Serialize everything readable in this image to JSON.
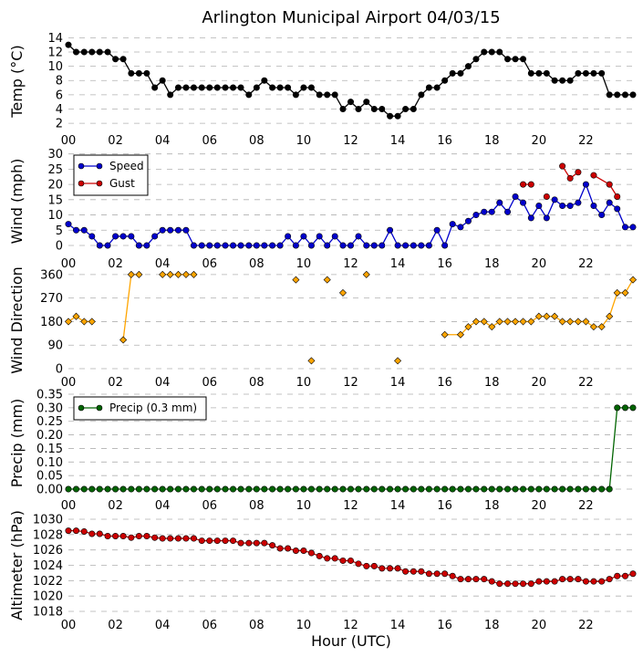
{
  "chart_data": {
    "type": "line",
    "title": "Arlington Municipal Airport 04/03/15",
    "xlabel": "Hour (UTC)",
    "x_range": [
      0,
      24
    ],
    "x_ticks": [
      "00",
      "02",
      "04",
      "06",
      "08",
      "10",
      "12",
      "14",
      "16",
      "18",
      "20",
      "22"
    ],
    "panels": [
      {
        "id": "temp",
        "ylabel": "Temp ($^\\circ$C)",
        "ylabel_display": "Temp (°C)",
        "ylim": [
          1.5,
          14.3
        ],
        "yticks": [
          2,
          4,
          6,
          8,
          10,
          12,
          14
        ],
        "ytick_labels": [
          "2",
          "4",
          "6",
          "8",
          "10",
          "12",
          "14"
        ],
        "series": [
          {
            "name": "Temp",
            "color": "#000000",
            "connect": true,
            "x": [
              0,
              0.33,
              0.67,
              1,
              1.33,
              1.67,
              2,
              2.33,
              2.67,
              3,
              3.33,
              3.67,
              4,
              4.33,
              4.67,
              5,
              5.33,
              5.67,
              6,
              6.33,
              6.67,
              7,
              7.33,
              7.67,
              8,
              8.33,
              8.67,
              9,
              9.33,
              9.67,
              10,
              10.33,
              10.67,
              11,
              11.33,
              11.67,
              12,
              12.33,
              12.67,
              13,
              13.33,
              13.67,
              14,
              14.33,
              14.67,
              15,
              15.33,
              15.67,
              16,
              16.33,
              16.67,
              17,
              17.33,
              17.67,
              18,
              18.33,
              18.67,
              19,
              19.33,
              19.67,
              20,
              20.33,
              20.67,
              21,
              21.33,
              21.67,
              22,
              22.33,
              22.67,
              23,
              23.33,
              23.67,
              24
            ],
            "values": [
              13,
              12,
              12,
              12,
              12,
              12,
              11,
              11,
              9,
              9,
              9,
              7,
              8,
              6,
              7,
              7,
              7,
              7,
              7,
              7,
              7,
              7,
              7,
              6,
              7,
              8,
              7,
              7,
              7,
              6,
              7,
              7,
              6,
              6,
              6,
              4,
              5,
              4,
              5,
              4,
              4,
              3,
              3,
              4,
              4,
              6,
              7,
              7,
              8,
              9,
              9,
              10,
              11,
              12,
              12,
              12,
              11,
              11,
              11,
              9,
              9,
              9,
              8,
              8,
              8,
              9,
              9,
              9,
              9,
              6,
              6,
              6,
              6
            ]
          }
        ]
      },
      {
        "id": "wind",
        "ylabel": "Wind (mph)",
        "ylim": [
          -1.5,
          30.5
        ],
        "yticks": [
          0,
          5,
          10,
          15,
          20,
          25,
          30
        ],
        "ytick_labels": [
          "0",
          "5",
          "10",
          "15",
          "20",
          "25",
          "30"
        ],
        "legend": [
          {
            "label": "Speed",
            "color": "#0000cc"
          },
          {
            "label": "Gust",
            "color": "#cc0000"
          }
        ],
        "series": [
          {
            "name": "Speed",
            "color": "#0000cc",
            "connect": true,
            "x": [
              0,
              0.33,
              0.67,
              1,
              1.33,
              1.67,
              2,
              2.33,
              2.67,
              3,
              3.33,
              3.67,
              4,
              4.33,
              4.67,
              5,
              5.33,
              5.67,
              6,
              6.33,
              6.67,
              7,
              7.33,
              7.67,
              8,
              8.33,
              8.67,
              9,
              9.33,
              9.67,
              10,
              10.33,
              10.67,
              11,
              11.33,
              11.67,
              12,
              12.33,
              12.67,
              13,
              13.33,
              13.67,
              14,
              14.33,
              14.67,
              15,
              15.33,
              15.67,
              16,
              16.33,
              16.67,
              17,
              17.33,
              17.67,
              18,
              18.33,
              18.67,
              19,
              19.33,
              19.67,
              20,
              20.33,
              20.67,
              21,
              21.33,
              21.67,
              22,
              22.33,
              22.67,
              23,
              23.33,
              23.67,
              24
            ],
            "values": [
              7,
              5,
              5,
              3,
              0,
              0,
              3,
              3,
              3,
              0,
              0,
              3,
              5,
              5,
              5,
              5,
              0,
              0,
              0,
              0,
              0,
              0,
              0,
              0,
              0,
              0,
              0,
              0,
              3,
              0,
              3,
              0,
              3,
              0,
              3,
              0,
              0,
              3,
              0,
              0,
              0,
              5,
              0,
              0,
              0,
              0,
              0,
              5,
              0,
              7,
              6,
              8,
              10,
              11,
              11,
              14,
              11,
              16,
              14,
              9,
              13,
              9,
              15,
              13,
              13,
              14,
              20,
              13,
              10,
              14,
              12,
              6,
              6
            ]
          },
          {
            "name": "Gust",
            "color": "#cc0000",
            "connect": true,
            "x": [
              19.33,
              19.67,
              20.33,
              21,
              21.33,
              21.67,
              22.33,
              23,
              23.33
            ],
            "values": [
              20,
              20,
              16,
              26,
              22,
              24,
              23,
              20,
              16
            ],
            "breaks_after": [
              1,
              2,
              5
            ]
          }
        ]
      },
      {
        "id": "direction",
        "ylabel": "Wind Direction",
        "ylim": [
          0,
          370
        ],
        "yticks": [
          0,
          90,
          180,
          270,
          360
        ],
        "ytick_labels": [
          "0",
          "90",
          "180",
          "270",
          "360"
        ],
        "series": [
          {
            "name": "Direction",
            "color": "#ffa500",
            "x": [
              0,
              0.33,
              0.67,
              1,
              2.33,
              2.67,
              3,
              4,
              4.33,
              4.67,
              5,
              5.33,
              9.67,
              10.33,
              11,
              11.67,
              12.67,
              14,
              16,
              16.67,
              17,
              17.33,
              17.67,
              18,
              18.33,
              18.67,
              19,
              19.33,
              19.67,
              20,
              20.33,
              20.67,
              21,
              21.33,
              21.67,
              22,
              22.33,
              22.67,
              23,
              23.33,
              23.67,
              24
            ],
            "values": [
              180,
              200,
              180,
              180,
              110,
              360,
              360,
              360,
              360,
              360,
              360,
              360,
              340,
              30,
              340,
              290,
              360,
              30,
              130,
              130,
              160,
              180,
              180,
              160,
              180,
              180,
              180,
              180,
              180,
              200,
              200,
              200,
              180,
              180,
              180,
              180,
              160,
              160,
              200,
              290,
              290,
              340
            ],
            "segments": [
              [
                0,
                3
              ],
              [
                4,
                6
              ],
              [
                7,
                11
              ],
              [
                18,
                41
              ]
            ]
          }
        ]
      },
      {
        "id": "precip",
        "ylabel": "Precip (mm)",
        "ylim": [
          -0.01,
          0.35
        ],
        "yticks": [
          0.0,
          0.05,
          0.1,
          0.15,
          0.2,
          0.25,
          0.3,
          0.35
        ],
        "ytick_labels": [
          "0.00",
          "0.05",
          "0.10",
          "0.15",
          "0.20",
          "0.25",
          "0.30",
          "0.35"
        ],
        "legend": [
          {
            "label": "Precip (0.3 mm)",
            "color": "#006400"
          }
        ],
        "series": [
          {
            "name": "Precip",
            "color": "#006400",
            "connect": true,
            "x": [
              0,
              0.33,
              0.67,
              1,
              1.33,
              1.67,
              2,
              2.33,
              2.67,
              3,
              3.33,
              3.67,
              4,
              4.33,
              4.67,
              5,
              5.33,
              5.67,
              6,
              6.33,
              6.67,
              7,
              7.33,
              7.67,
              8,
              8.33,
              8.67,
              9,
              9.33,
              9.67,
              10,
              10.33,
              10.67,
              11,
              11.33,
              11.67,
              12,
              12.33,
              12.67,
              13,
              13.33,
              13.67,
              14,
              14.33,
              14.67,
              15,
              15.33,
              15.67,
              16,
              16.33,
              16.67,
              17,
              17.33,
              17.67,
              18,
              18.33,
              18.67,
              19,
              19.33,
              19.67,
              20,
              20.33,
              20.67,
              21,
              21.33,
              21.67,
              22,
              22.33,
              22.67,
              23,
              23.33,
              23.67,
              24
            ],
            "values": [
              0,
              0,
              0,
              0,
              0,
              0,
              0,
              0,
              0,
              0,
              0,
              0,
              0,
              0,
              0,
              0,
              0,
              0,
              0,
              0,
              0,
              0,
              0,
              0,
              0,
              0,
              0,
              0,
              0,
              0,
              0,
              0,
              0,
              0,
              0,
              0,
              0,
              0,
              0,
              0,
              0,
              0,
              0,
              0,
              0,
              0,
              0,
              0,
              0,
              0,
              0,
              0,
              0,
              0,
              0,
              0,
              0,
              0,
              0,
              0,
              0,
              0,
              0,
              0,
              0,
              0,
              0,
              0,
              0,
              0,
              0.3,
              0.3,
              0.3
            ]
          }
        ]
      },
      {
        "id": "altimeter",
        "ylabel": "Altimeter (hPa)",
        "ylim": [
          1018,
          1030
        ],
        "yticks": [
          1018,
          1020,
          1022,
          1024,
          1026,
          1028,
          1030
        ],
        "ytick_labels": [
          "1018",
          "1020",
          "1022",
          "1024",
          "1026",
          "1028",
          "1030"
        ],
        "series": [
          {
            "name": "Altimeter",
            "color": "#cc0000",
            "connect": true,
            "x": [
              0,
              0.33,
              0.67,
              1,
              1.33,
              1.67,
              2,
              2.33,
              2.67,
              3,
              3.33,
              3.67,
              4,
              4.33,
              4.67,
              5,
              5.33,
              5.67,
              6,
              6.33,
              6.67,
              7,
              7.33,
              7.67,
              8,
              8.33,
              8.67,
              9,
              9.33,
              9.67,
              10,
              10.33,
              10.67,
              11,
              11.33,
              11.67,
              12,
              12.33,
              12.67,
              13,
              13.33,
              13.67,
              14,
              14.33,
              14.67,
              15,
              15.33,
              15.67,
              16,
              16.33,
              16.67,
              17,
              17.33,
              17.67,
              18,
              18.33,
              18.67,
              19,
              19.33,
              19.67,
              20,
              20.33,
              20.67,
              21,
              21.33,
              21.67,
              22,
              22.33,
              22.67,
              23,
              23.33,
              23.67,
              24
            ],
            "values": [
              1028.5,
              1028.5,
              1028.4,
              1028.1,
              1028.1,
              1027.8,
              1027.8,
              1027.8,
              1027.6,
              1027.8,
              1027.8,
              1027.6,
              1027.5,
              1027.5,
              1027.5,
              1027.5,
              1027.5,
              1027.2,
              1027.2,
              1027.2,
              1027.2,
              1027.2,
              1026.9,
              1026.9,
              1026.9,
              1026.9,
              1026.6,
              1026.2,
              1026.2,
              1025.9,
              1025.9,
              1025.6,
              1025.2,
              1024.9,
              1024.9,
              1024.6,
              1024.6,
              1024.2,
              1023.9,
              1023.9,
              1023.6,
              1023.6,
              1023.6,
              1023.2,
              1023.2,
              1023.2,
              1022.9,
              1022.9,
              1022.9,
              1022.6,
              1022.2,
              1022.2,
              1022.2,
              1022.2,
              1021.9,
              1021.6,
              1021.6,
              1021.6,
              1021.6,
              1021.6,
              1021.9,
              1021.9,
              1021.9,
              1022.2,
              1022.2,
              1022.2,
              1021.9,
              1021.9,
              1021.9,
              1022.2,
              1022.6,
              1022.6,
              1022.9
            ]
          }
        ]
      }
    ]
  }
}
